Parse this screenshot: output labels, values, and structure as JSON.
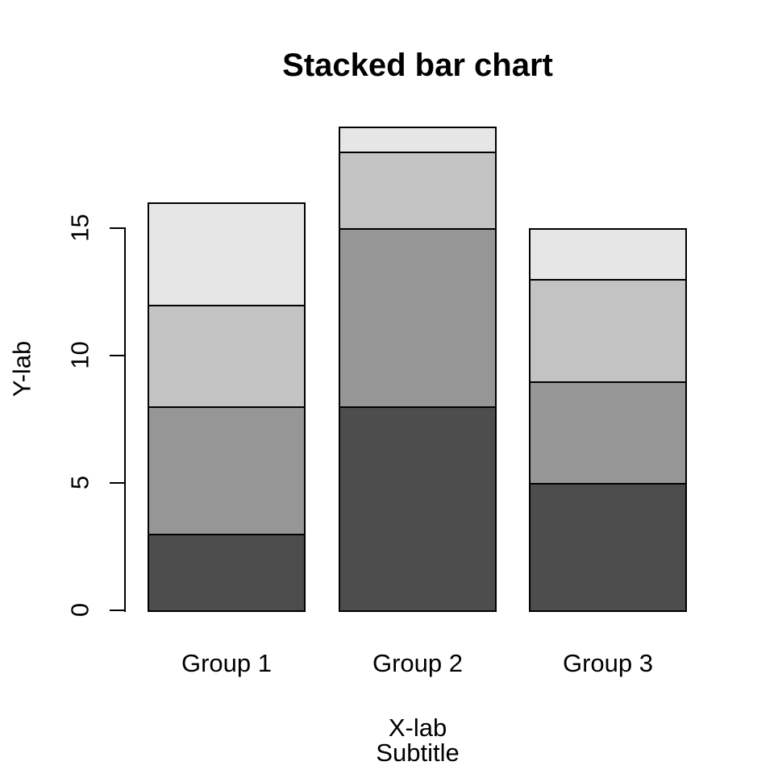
{
  "chart_data": {
    "type": "bar",
    "stacked": true,
    "title": "Stacked bar chart",
    "xlabel": "X-lab",
    "subtitle": "Subtitle",
    "ylabel": "Y-lab",
    "categories": [
      "Group 1",
      "Group 2",
      "Group 3"
    ],
    "series": [
      {
        "color": "#4D4D4D",
        "values": [
          3,
          8,
          5
        ]
      },
      {
        "color": "#969696",
        "values": [
          5,
          7,
          4
        ]
      },
      {
        "color": "#C3C3C3",
        "values": [
          4,
          3,
          4
        ]
      },
      {
        "color": "#E6E6E6",
        "values": [
          4,
          1,
          2
        ]
      }
    ],
    "stack_totals": [
      16,
      19,
      15
    ],
    "y_ticks": [
      0,
      5,
      10,
      15
    ],
    "ylim": [
      0,
      19
    ],
    "grid": false,
    "legend": false,
    "bar_border_color": "#000000",
    "axis_color": "#000000",
    "text_color": "#000000",
    "background_color": "#FFFFFF"
  }
}
